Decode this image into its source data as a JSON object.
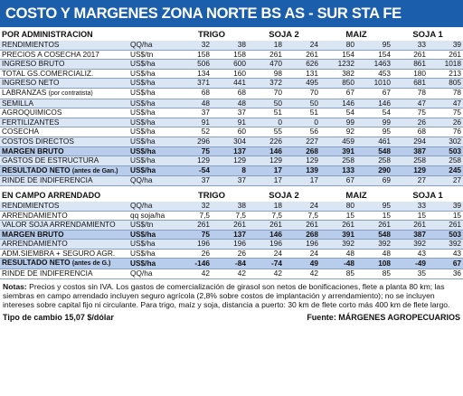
{
  "title": "COSTO Y MARGENES ZONA NORTE BS AS - SUR STA FE",
  "crops": [
    "TRIGO",
    "SOJA 2",
    "MAIZ",
    "SOJA 1"
  ],
  "admin": {
    "header": "POR ADMINISTRACION",
    "rows": [
      {
        "label": "RENDIMIENTOS",
        "unit": "QQ/ha",
        "vals": [
          "32",
          "38",
          "18",
          "24",
          "80",
          "95",
          "33",
          "39"
        ]
      },
      {
        "label": "PRECIOS A COSECHA 2017",
        "unit": "US$/tn",
        "vals": [
          "158",
          "158",
          "261",
          "261",
          "154",
          "154",
          "261",
          "261"
        ]
      },
      {
        "label": "INGRESO BRUTO",
        "unit": "US$/ha",
        "vals": [
          "506",
          "600",
          "470",
          "626",
          "1232",
          "1463",
          "861",
          "1018"
        ]
      },
      {
        "label": "TOTAL GS.COMERCIALIZ.",
        "unit": "US$/ha",
        "vals": [
          "134",
          "160",
          "98",
          "131",
          "382",
          "453",
          "180",
          "213"
        ]
      },
      {
        "label": "INGRESO NETO",
        "unit": "US$/ha",
        "vals": [
          "371",
          "441",
          "372",
          "495",
          "850",
          "1010",
          "681",
          "805"
        ]
      },
      {
        "label": "LABRANZAS",
        "label_note": "(por contratista)",
        "unit": "US$/ha",
        "vals": [
          "68",
          "68",
          "70",
          "70",
          "67",
          "67",
          "78",
          "78"
        ]
      },
      {
        "label": "SEMILLA",
        "unit": "US$/ha",
        "vals": [
          "48",
          "48",
          "50",
          "50",
          "146",
          "146",
          "47",
          "47"
        ]
      },
      {
        "label": "AGROQUIMICOS",
        "unit": "US$/ha",
        "vals": [
          "37",
          "37",
          "51",
          "51",
          "54",
          "54",
          "75",
          "75"
        ]
      },
      {
        "label": "FERTILIZANTES",
        "unit": "US$/ha",
        "vals": [
          "91",
          "91",
          "0",
          "0",
          "99",
          "99",
          "26",
          "26"
        ]
      },
      {
        "label": "COSECHA",
        "unit": "US$/ha",
        "vals": [
          "52",
          "60",
          "55",
          "56",
          "92",
          "95",
          "68",
          "76"
        ]
      },
      {
        "label": "COSTOS DIRECTOS",
        "unit": "US$/ha",
        "vals": [
          "296",
          "304",
          "226",
          "227",
          "459",
          "461",
          "294",
          "302"
        ]
      },
      {
        "label": "MARGEN BRUTO",
        "unit": "US$/ha",
        "vals": [
          "75",
          "137",
          "146",
          "268",
          "391",
          "548",
          "387",
          "503"
        ],
        "hl": true
      },
      {
        "label": "GASTOS DE ESTRUCTURA",
        "unit": "US$/ha",
        "vals": [
          "129",
          "129",
          "129",
          "129",
          "258",
          "258",
          "258",
          "258"
        ]
      },
      {
        "label": "RESULTADO NETO",
        "label_note": "(antes de Gan.)",
        "unit": "US$/ha",
        "vals": [
          "-54",
          "8",
          "17",
          "139",
          "133",
          "290",
          "129",
          "245"
        ],
        "hl": true
      },
      {
        "label": "RINDE DE INDIFERENCIA",
        "unit": "QQ/ha",
        "vals": [
          "37",
          "37",
          "17",
          "17",
          "67",
          "69",
          "27",
          "27"
        ]
      }
    ]
  },
  "arrendado": {
    "header": "EN CAMPO ARRENDADO",
    "rows": [
      {
        "label": "RENDIMIENTOS",
        "unit": "QQ/ha",
        "vals": [
          "32",
          "38",
          "18",
          "24",
          "80",
          "95",
          "33",
          "39"
        ]
      },
      {
        "label": "ARRENDAMIENTO",
        "unit": "qq soja/ha",
        "vals": [
          "7,5",
          "7,5",
          "7,5",
          "7,5",
          "15",
          "15",
          "15",
          "15"
        ]
      },
      {
        "label": "VALOR SOJA ARRENDAMIENTO",
        "unit": "US$/tn",
        "vals": [
          "261",
          "261",
          "261",
          "261",
          "261",
          "261",
          "261",
          "261"
        ]
      },
      {
        "label": "MARGEN BRUTO",
        "unit": "US$/ha",
        "vals": [
          "75",
          "137",
          "146",
          "268",
          "391",
          "548",
          "387",
          "503"
        ],
        "hl": true
      },
      {
        "label": "ARRENDAMIENTO",
        "unit": "US$/ha",
        "vals": [
          "196",
          "196",
          "196",
          "196",
          "392",
          "392",
          "392",
          "392"
        ]
      },
      {
        "label": "ADM.SIEMBRA + SEGURO AGR.",
        "unit": "US$/ha",
        "vals": [
          "26",
          "26",
          "24",
          "24",
          "48",
          "48",
          "43",
          "43"
        ]
      },
      {
        "label": "RESULTADO NETO",
        "label_note": "(antes de G.)",
        "unit": "US$/ha",
        "vals": [
          "-146",
          "-84",
          "-74",
          "49",
          "-48",
          "108",
          "-49",
          "67"
        ],
        "hl": true
      },
      {
        "label": "RINDE DE INDIFERENCIA",
        "unit": "QQ/ha",
        "vals": [
          "42",
          "42",
          "42",
          "42",
          "85",
          "85",
          "35",
          "36"
        ]
      }
    ]
  },
  "notes_label": "Notas:",
  "notes_text": "Precios y costos sin IVA. Los gastos de comercialización de girasol son netos de bonificaciones, flete a planta 80 km; las siembras en campo arrendado incluyen seguro agrícola (2,8% sobre costos de implantación y arrendamiento); no se incluyen intereses sobre capital fijo ni circulante. Para trigo, maíz y soja, distancia a puerto: 30 km de flete corto más 400 km de flete largo.",
  "exchange": "Tipo de cambio 15,07 $/dólar",
  "source": "Fuente: MÁRGENES AGROPECUARIOS",
  "colors": {
    "title_bg": "#1b5eab",
    "row_alt": "#dbe6f5",
    "row_highlight": "#b8cceb"
  }
}
